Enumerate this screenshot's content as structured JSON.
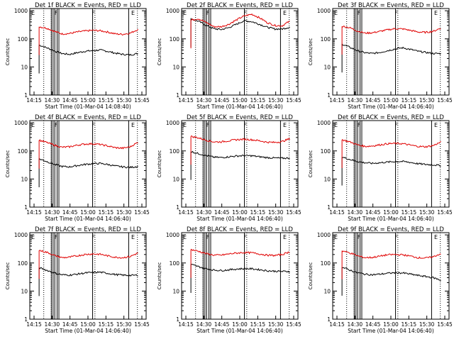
{
  "chart_data": [
    {
      "type": "line",
      "title": "Det 1f BLACK = Events, RED = LLD",
      "ylabel": "Counts/sec",
      "xlabel": "Start Time (01-Mar-04 14:08:40)",
      "x_ticks": [
        "14:15",
        "14:30",
        "14:45",
        "15:00",
        "15:15",
        "15:30",
        "15:45"
      ],
      "y_ticks": [
        "1",
        "10",
        "100",
        "1000"
      ],
      "ylim": [
        1,
        1200
      ],
      "yscale": "log",
      "flags": [
        "E",
        "F",
        "F",
        "E"
      ],
      "series": [
        {
          "color": "#000000",
          "values": [
            60,
            48,
            37,
            30,
            28,
            32,
            36,
            38,
            40,
            36,
            31,
            28,
            27,
            30
          ]
        },
        {
          "color": "#e00000",
          "values": [
            270,
            240,
            185,
            150,
            155,
            175,
            190,
            200,
            195,
            175,
            150,
            145,
            160,
            215
          ]
        }
      ]
    },
    {
      "type": "line",
      "title": "Det 2f BLACK = Events, RED = LLD",
      "ylabel": "Counts/sec",
      "xlabel": "Start Time (01-Mar-04 14:06:40)",
      "x_ticks": [
        "14:15",
        "14:30",
        "14:45",
        "15:00",
        "15:15",
        "15:30",
        "15:45"
      ],
      "y_ticks": [
        "1",
        "10",
        "100",
        "1000"
      ],
      "ylim": [
        1,
        1200
      ],
      "yscale": "log",
      "flags": [
        "E",
        "F",
        "F",
        "E"
      ],
      "series": [
        {
          "color": "#000000",
          "values": [
            520,
            420,
            300,
            230,
            215,
            250,
            330,
            440,
            410,
            330,
            260,
            225,
            225,
            260
          ]
        },
        {
          "color": "#e00000",
          "values": [
            470,
            520,
            380,
            270,
            270,
            330,
            470,
            650,
            750,
            560,
            380,
            300,
            290,
            420
          ]
        }
      ]
    },
    {
      "type": "line",
      "title": "Det 3f BLACK = Events, RED = LLD",
      "ylabel": "Counts/sec",
      "xlabel": "Start Time (01-Mar-04 14:06:40)",
      "x_ticks": [
        "14:15",
        "14:30",
        "14:45",
        "15:00",
        "15:15",
        "15:30",
        "15:45"
      ],
      "y_ticks": [
        "1",
        "10",
        "100",
        "1000"
      ],
      "ylim": [
        1,
        1200
      ],
      "yscale": "log",
      "flags": [
        "E",
        "F",
        "F",
        "E"
      ],
      "series": [
        {
          "color": "#000000",
          "values": [
            65,
            50,
            38,
            32,
            30,
            33,
            38,
            44,
            48,
            42,
            36,
            33,
            30,
            30
          ]
        },
        {
          "color": "#e00000",
          "values": [
            280,
            250,
            190,
            160,
            165,
            185,
            210,
            230,
            225,
            200,
            175,
            170,
            185,
            240
          ]
        }
      ]
    },
    {
      "type": "line",
      "title": "Det 4f BLACK = Events, RED = LLD",
      "ylabel": "Counts/sec",
      "xlabel": "Start Time (01-Mar-04 14:06:40)",
      "x_ticks": [
        "14:15",
        "14:30",
        "14:45",
        "15:00",
        "15:15",
        "15:30",
        "15:45"
      ],
      "y_ticks": [
        "1",
        "10",
        "100",
        "1000"
      ],
      "ylim": [
        1,
        1200
      ],
      "yscale": "log",
      "flags": [
        "E",
        "F",
        "F",
        "E"
      ],
      "series": [
        {
          "color": "#000000",
          "values": [
            52,
            42,
            33,
            28,
            27,
            30,
            33,
            35,
            36,
            33,
            29,
            27,
            26,
            28
          ]
        },
        {
          "color": "#e00000",
          "values": [
            240,
            200,
            160,
            135,
            140,
            160,
            175,
            180,
            170,
            150,
            130,
            125,
            140,
            200
          ]
        }
      ]
    },
    {
      "type": "line",
      "title": "Det 5f BLACK = Events, RED = LLD",
      "ylabel": "Counts/sec",
      "xlabel": "Start Time (01-Mar-04 14:06:40)",
      "x_ticks": [
        "14:15",
        "14:30",
        "14:45",
        "15:00",
        "15:15",
        "15:30",
        "15:45"
      ],
      "y_ticks": [
        "1",
        "10",
        "100",
        "1000"
      ],
      "ylim": [
        1,
        1200
      ],
      "yscale": "log",
      "flags": [
        "E",
        "F",
        "F",
        "E"
      ],
      "series": [
        {
          "color": "#000000",
          "values": [
            95,
            80,
            68,
            60,
            58,
            62,
            66,
            68,
            67,
            62,
            58,
            56,
            55,
            56
          ]
        },
        {
          "color": "#e00000",
          "values": [
            330,
            290,
            240,
            210,
            210,
            230,
            250,
            260,
            250,
            230,
            205,
            200,
            215,
            270
          ]
        }
      ]
    },
    {
      "type": "line",
      "title": "Det 6f BLACK = Events, RED = LLD",
      "ylabel": "Counts/sec",
      "xlabel": "Start Time (01-Mar-04 14:06:40)",
      "x_ticks": [
        "14:15",
        "14:30",
        "14:45",
        "15:00",
        "15:15",
        "15:30",
        "15:45"
      ],
      "y_ticks": [
        "1",
        "10",
        "100",
        "1000"
      ],
      "ylim": [
        1,
        1200
      ],
      "yscale": "log",
      "flags": [
        "E",
        "F",
        "F",
        "E"
      ],
      "series": [
        {
          "color": "#000000",
          "values": [
            60,
            50,
            42,
            38,
            36,
            38,
            40,
            42,
            42,
            39,
            35,
            33,
            32,
            30
          ]
        },
        {
          "color": "#e00000",
          "values": [
            250,
            210,
            165,
            145,
            150,
            165,
            180,
            185,
            180,
            160,
            145,
            140,
            155,
            205
          ]
        }
      ]
    },
    {
      "type": "line",
      "title": "Det 7f BLACK = Events, RED = LLD",
      "ylabel": "Counts/sec",
      "xlabel": "Start Time (01-Mar-04 14:06:40)",
      "x_ticks": [
        "14:15",
        "14:30",
        "14:45",
        "15:00",
        "15:15",
        "15:30",
        "15:45"
      ],
      "y_ticks": [
        "1",
        "10",
        "100",
        "1000"
      ],
      "ylim": [
        1,
        1200
      ],
      "yscale": "log",
      "flags": [
        "E",
        "F",
        "F",
        "E"
      ],
      "series": [
        {
          "color": "#000000",
          "values": [
            68,
            55,
            44,
            38,
            37,
            40,
            44,
            46,
            47,
            43,
            39,
            37,
            36,
            37
          ]
        },
        {
          "color": "#e00000",
          "values": [
            280,
            240,
            185,
            155,
            160,
            180,
            200,
            210,
            205,
            180,
            160,
            155,
            170,
            225
          ]
        }
      ]
    },
    {
      "type": "line",
      "title": "Det 8f BLACK = Events, RED = LLD",
      "ylabel": "Counts/sec",
      "xlabel": "Start Time (01-Mar-04 14:06:40)",
      "x_ticks": [
        "14:15",
        "14:30",
        "14:45",
        "15:00",
        "15:15",
        "15:30",
        "15:45"
      ],
      "y_ticks": [
        "1",
        "10",
        "100",
        "1000"
      ],
      "ylim": [
        1,
        1200
      ],
      "yscale": "log",
      "flags": [
        "E",
        "F",
        "F",
        "E"
      ],
      "series": [
        {
          "color": "#000000",
          "values": [
            88,
            74,
            62,
            56,
            54,
            57,
            61,
            63,
            62,
            58,
            53,
            51,
            50,
            50
          ]
        },
        {
          "color": "#e00000",
          "values": [
            300,
            260,
            215,
            190,
            190,
            210,
            225,
            235,
            230,
            210,
            190,
            185,
            200,
            250
          ]
        }
      ]
    },
    {
      "type": "line",
      "title": "Det 9f BLACK = Events, RED = LLD",
      "ylabel": "Counts/sec",
      "xlabel": "Start Time (01-Mar-04 14:06:40)",
      "x_ticks": [
        "14:15",
        "14:30",
        "14:45",
        "15:00",
        "15:15",
        "15:30",
        "15:45"
      ],
      "y_ticks": [
        "1",
        "10",
        "100",
        "1000"
      ],
      "ylim": [
        1,
        1200
      ],
      "yscale": "log",
      "flags": [
        "E",
        "F",
        "F",
        "E"
      ],
      "series": [
        {
          "color": "#000000",
          "values": [
            70,
            56,
            45,
            40,
            38,
            40,
            43,
            45,
            44,
            40,
            36,
            33,
            30,
            24
          ]
        },
        {
          "color": "#e00000",
          "values": [
            270,
            230,
            180,
            155,
            158,
            175,
            195,
            200,
            195,
            175,
            155,
            150,
            165,
            215
          ]
        }
      ]
    }
  ]
}
